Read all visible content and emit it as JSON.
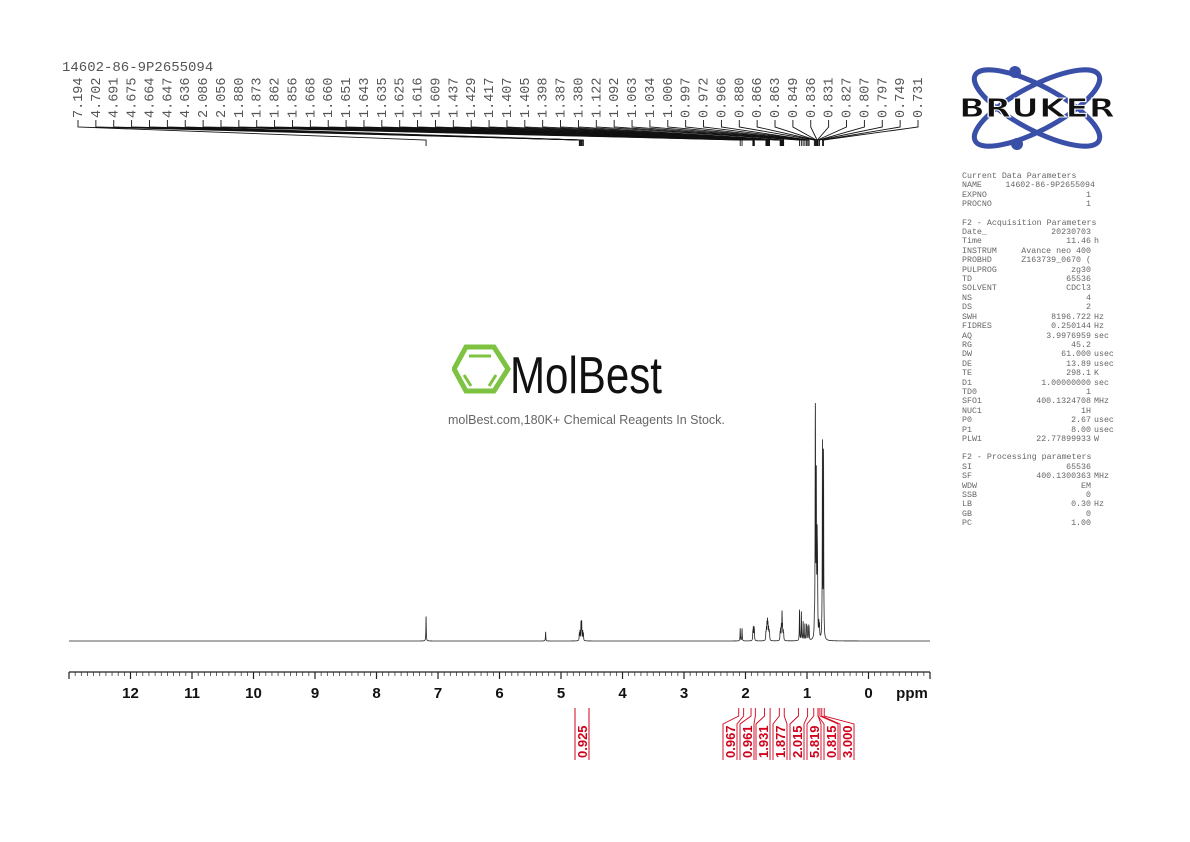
{
  "title": "14602-86-9P2655094",
  "watermark": {
    "brand": "MolBest",
    "tagline": "molBest.com,180K+ Chemical Reagents In Stock.",
    "color": "#7dc241"
  },
  "vendor_logo": {
    "text": "BRUKER",
    "color": "#3a4fa8"
  },
  "parameters": {
    "current": {
      "heading": "Current Data Parameters",
      "rows": [
        [
          "NAME",
          "14602-86-9P2655094",
          ""
        ],
        [
          "EXPNO",
          "1",
          ""
        ],
        [
          "PROCNO",
          "1",
          ""
        ]
      ]
    },
    "acquisition": {
      "heading": "F2 - Acquisition Parameters",
      "rows": [
        [
          "Date_",
          "20230703",
          ""
        ],
        [
          "Time",
          "11.46",
          "h"
        ],
        [
          "INSTRUM",
          "Avance neo 400",
          ""
        ],
        [
          "PROBHD",
          "Z163739_0670 (",
          ""
        ],
        [
          "PULPROG",
          "zg30",
          ""
        ],
        [
          "TD",
          "65536",
          ""
        ],
        [
          "SOLVENT",
          "CDCl3",
          ""
        ],
        [
          "NS",
          "4",
          ""
        ],
        [
          "DS",
          "2",
          ""
        ],
        [
          "SWH",
          "8196.722",
          "Hz"
        ],
        [
          "FIDRES",
          "0.250144",
          "Hz"
        ],
        [
          "AQ",
          "3.9976959",
          "sec"
        ],
        [
          "RG",
          "45.2",
          ""
        ],
        [
          "DW",
          "61.000",
          "usec"
        ],
        [
          "DE",
          "13.89",
          "usec"
        ],
        [
          "TE",
          "298.1",
          "K"
        ],
        [
          "D1",
          "1.00000000",
          "sec"
        ],
        [
          "TD0",
          "1",
          ""
        ],
        [
          "SFO1",
          "400.1324708",
          "MHz"
        ],
        [
          "NUC1",
          "1H",
          ""
        ],
        [
          "P0",
          "2.67",
          "usec"
        ],
        [
          "P1",
          "8.00",
          "usec"
        ],
        [
          "PLW1",
          "22.77899933",
          "W"
        ]
      ]
    },
    "processing": {
      "heading": "F2 - Processing parameters",
      "rows": [
        [
          "SI",
          "65536",
          ""
        ],
        [
          "SF",
          "400.1300363",
          "MHz"
        ],
        [
          "WDW",
          "EM",
          ""
        ],
        [
          "SSB",
          "0",
          ""
        ],
        [
          "LB",
          "0.30",
          "Hz"
        ],
        [
          "GB",
          "0",
          ""
        ],
        [
          "PC",
          "1.00",
          ""
        ]
      ]
    }
  },
  "chart_data": {
    "type": "line",
    "xlabel": "ppm",
    "xlim": [
      13,
      -1
    ],
    "x_reversed": true,
    "xticks": [
      12,
      11,
      10,
      9,
      8,
      7,
      6,
      5,
      4,
      3,
      2,
      1,
      0
    ],
    "line_color": "#000000",
    "integral_color": "#d0021b",
    "peaks": [
      {
        "ppm": 7.194,
        "intensity": 24
      },
      {
        "ppm": 4.702,
        "intensity": 7
      },
      {
        "ppm": 4.691,
        "intensity": 9
      },
      {
        "ppm": 4.675,
        "intensity": 17
      },
      {
        "ppm": 4.664,
        "intensity": 18
      },
      {
        "ppm": 4.647,
        "intensity": 9
      },
      {
        "ppm": 4.636,
        "intensity": 7
      },
      {
        "ppm": 2.086,
        "intensity": 12
      },
      {
        "ppm": 2.056,
        "intensity": 12
      },
      {
        "ppm": 1.88,
        "intensity": 8
      },
      {
        "ppm": 1.873,
        "intensity": 11
      },
      {
        "ppm": 1.862,
        "intensity": 11
      },
      {
        "ppm": 1.856,
        "intensity": 8
      },
      {
        "ppm": 1.668,
        "intensity": 7
      },
      {
        "ppm": 1.66,
        "intensity": 10
      },
      {
        "ppm": 1.651,
        "intensity": 14
      },
      {
        "ppm": 1.643,
        "intensity": 17
      },
      {
        "ppm": 1.635,
        "intensity": 14
      },
      {
        "ppm": 1.625,
        "intensity": 11
      },
      {
        "ppm": 1.616,
        "intensity": 8
      },
      {
        "ppm": 1.609,
        "intensity": 6
      },
      {
        "ppm": 1.437,
        "intensity": 7
      },
      {
        "ppm": 1.429,
        "intensity": 10
      },
      {
        "ppm": 1.417,
        "intensity": 13
      },
      {
        "ppm": 1.407,
        "intensity": 14
      },
      {
        "ppm": 1.405,
        "intensity": 14
      },
      {
        "ppm": 1.398,
        "intensity": 11
      },
      {
        "ppm": 1.387,
        "intensity": 8
      },
      {
        "ppm": 1.38,
        "intensity": 6
      },
      {
        "ppm": 1.122,
        "intensity": 30
      },
      {
        "ppm": 1.092,
        "intensity": 28
      },
      {
        "ppm": 1.063,
        "intensity": 18
      },
      {
        "ppm": 1.034,
        "intensity": 16
      },
      {
        "ppm": 1.006,
        "intensity": 14
      },
      {
        "ppm": 0.997,
        "intensity": 12
      },
      {
        "ppm": 0.972,
        "intensity": 12
      },
      {
        "ppm": 0.966,
        "intensity": 10
      },
      {
        "ppm": 0.88,
        "intensity": 14
      },
      {
        "ppm": 0.866,
        "intensity": 130
      },
      {
        "ppm": 0.863,
        "intensity": 130
      },
      {
        "ppm": 0.849,
        "intensity": 150
      },
      {
        "ppm": 0.836,
        "intensity": 80
      },
      {
        "ppm": 0.831,
        "intensity": 45
      },
      {
        "ppm": 0.827,
        "intensity": 30
      },
      {
        "ppm": 0.807,
        "intensity": 14
      },
      {
        "ppm": 0.797,
        "intensity": 12
      },
      {
        "ppm": 0.749,
        "intensity": 190
      },
      {
        "ppm": 0.731,
        "intensity": 180
      }
    ],
    "unlabeled_peaks": [
      {
        "ppm": 5.25,
        "intensity": 9
      }
    ],
    "integrals": [
      {
        "value": "0.925",
        "from": 4.75,
        "to": 4.6
      },
      {
        "value": "0.967",
        "from": 2.11,
        "to": 2.03
      },
      {
        "value": "0.961",
        "from": 1.91,
        "to": 1.84
      },
      {
        "value": "1.931",
        "from": 1.69,
        "to": 1.6
      },
      {
        "value": "1.877",
        "from": 1.45,
        "to": 1.37
      },
      {
        "value": "2.015",
        "from": 1.14,
        "to": 0.99
      },
      {
        "value": "5.819",
        "from": 0.89,
        "to": 0.82
      },
      {
        "value": "0.815",
        "from": 0.82,
        "to": 0.79
      },
      {
        "value": "3.000",
        "from": 0.76,
        "to": 0.72
      }
    ]
  }
}
